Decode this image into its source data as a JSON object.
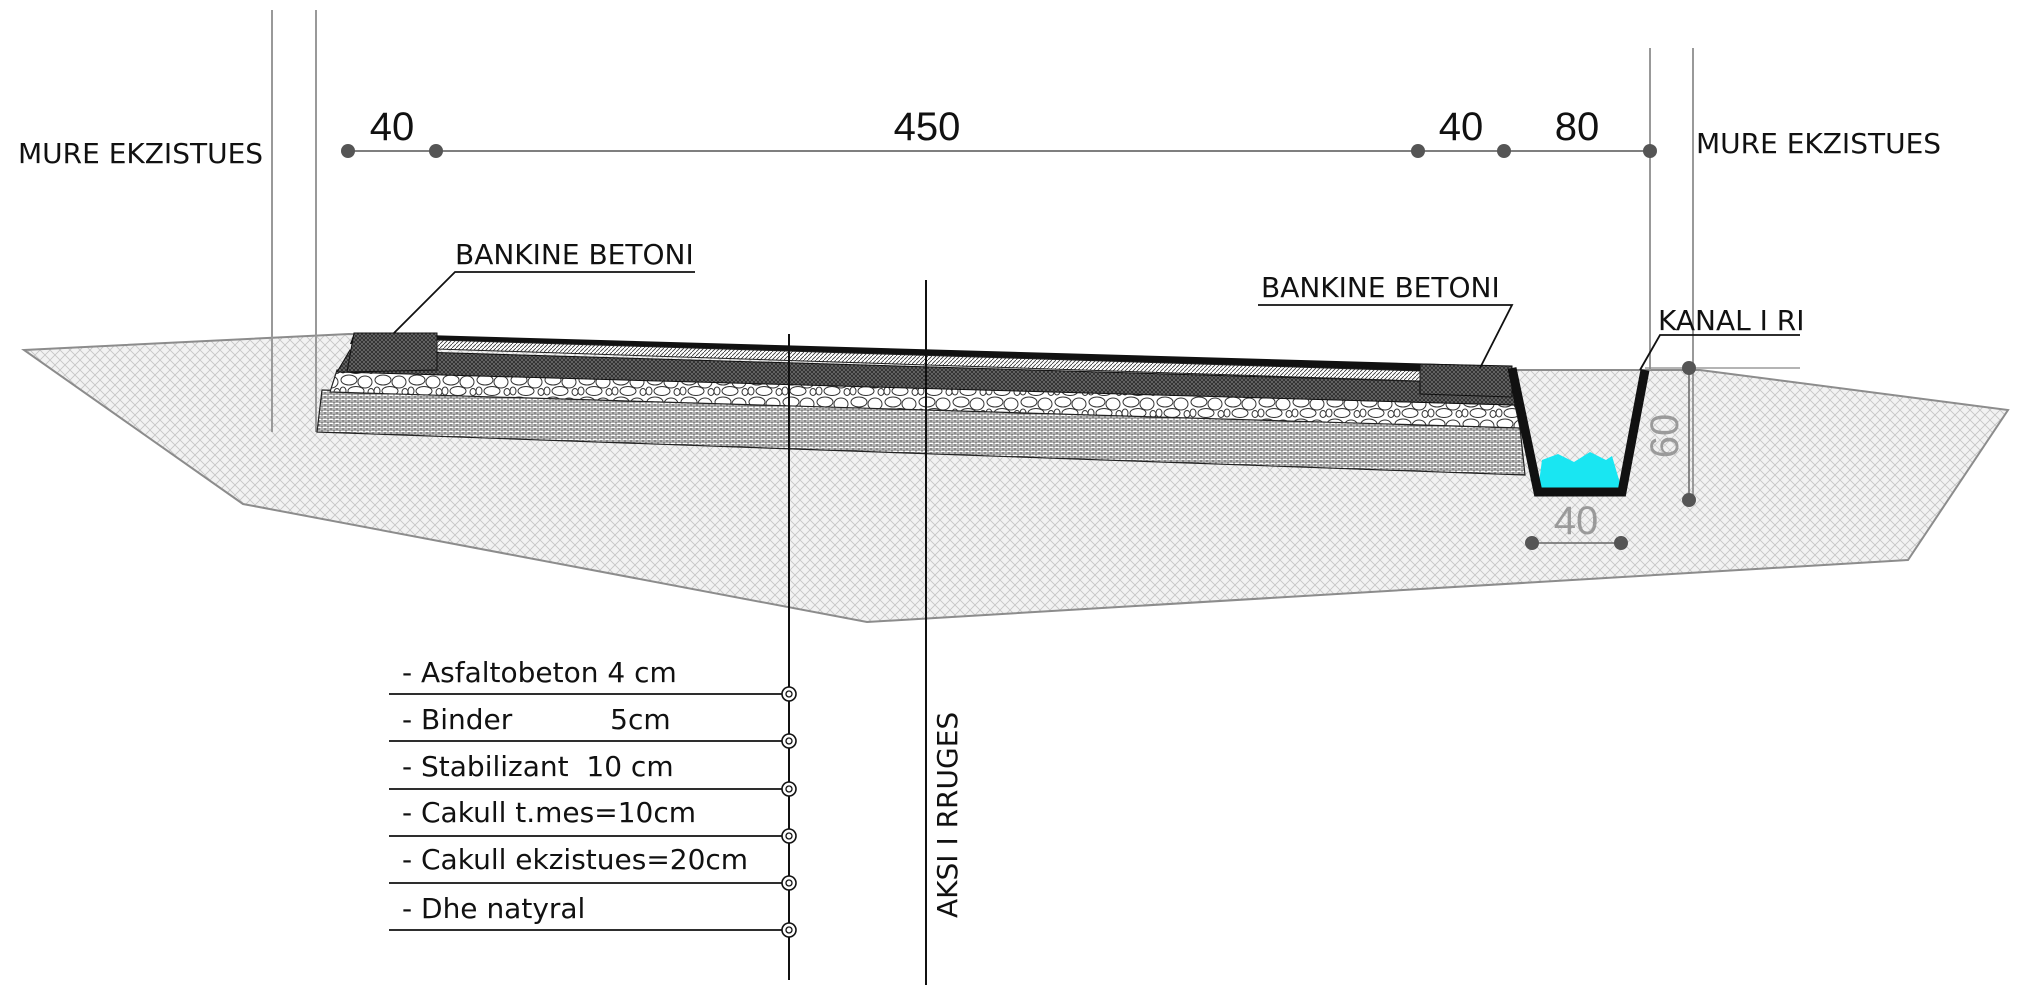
{
  "labels": {
    "left_wall": "MURE EKZISTUES",
    "right_wall": "MURE EKZISTUES",
    "bankine_left": "BANKINE BETONI",
    "bankine_right": "BANKINE BETONI",
    "kanal": "KANAL I RI",
    "axis": "AKSI I RRUGES"
  },
  "dimensions": {
    "top": [
      "40",
      "450",
      "40",
      "80"
    ],
    "channel_width": "40",
    "channel_depth": "60"
  },
  "layers": [
    "- Asfaltobeton  4 cm",
    "- Binder           5cm",
    "- Stabilizant  10 cm",
    "- Cakull t.mes=10cm",
    "- Cakull ekzistues=20cm",
    "- Dhe natyral"
  ],
  "colors": {
    "ground_fill": "#f0f0f0",
    "ground_stroke": "#8c8c8c",
    "asphalt": "#111111",
    "water": "#19e6f2",
    "dim_dot": "#555555",
    "grey_text": "#9a9a9a"
  }
}
